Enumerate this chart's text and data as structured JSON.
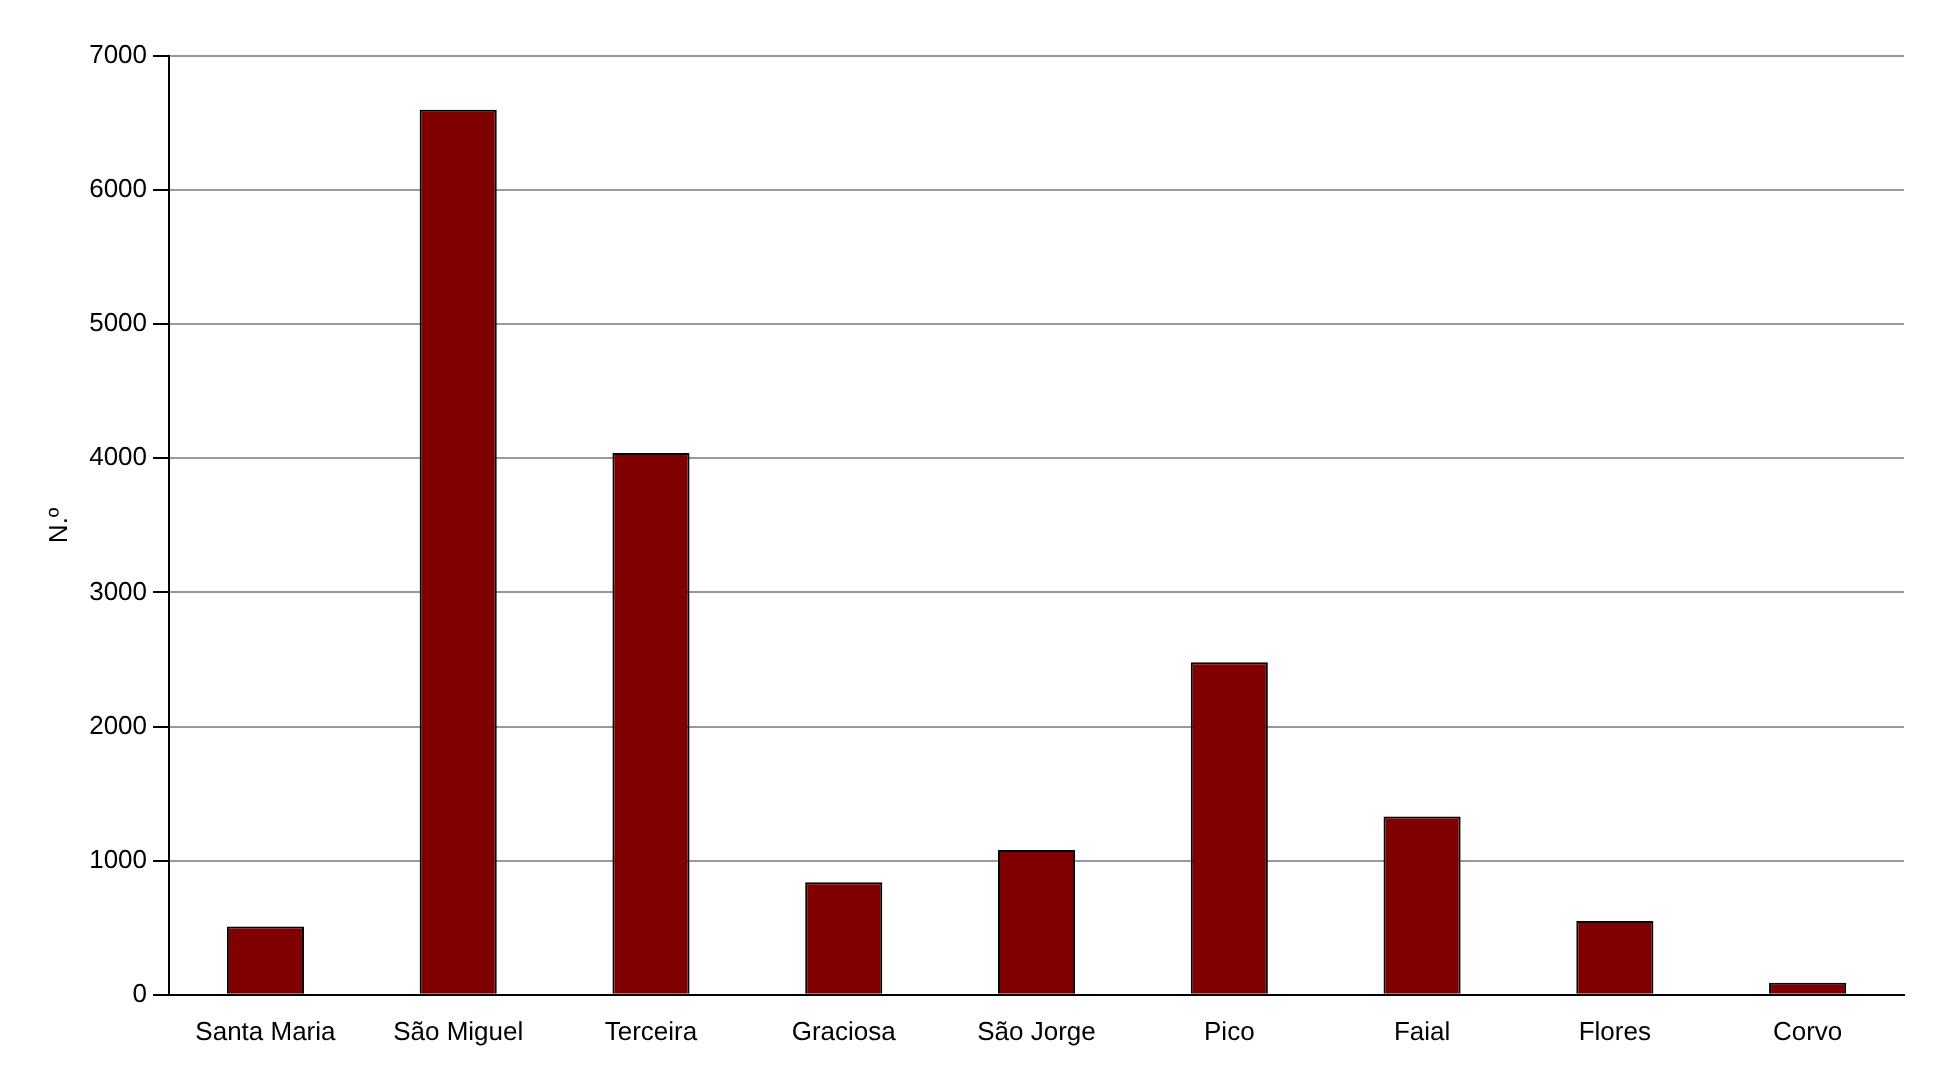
{
  "chart_data": {
    "type": "bar",
    "ylabel": "N.º",
    "categories": [
      "Santa Maria",
      "São Miguel",
      "Terceira",
      "Graciosa",
      "São Jorge",
      "Pico",
      "Faial",
      "Flores",
      "Corvo"
    ],
    "values": [
      510,
      6600,
      4040,
      840,
      1080,
      2480,
      1330,
      550,
      90
    ],
    "color": "#800000",
    "ylim": [
      0,
      7000
    ],
    "yticks": [
      0,
      1000,
      2000,
      3000,
      4000,
      5000,
      6000,
      7000
    ],
    "grid": "y",
    "legend": false
  }
}
